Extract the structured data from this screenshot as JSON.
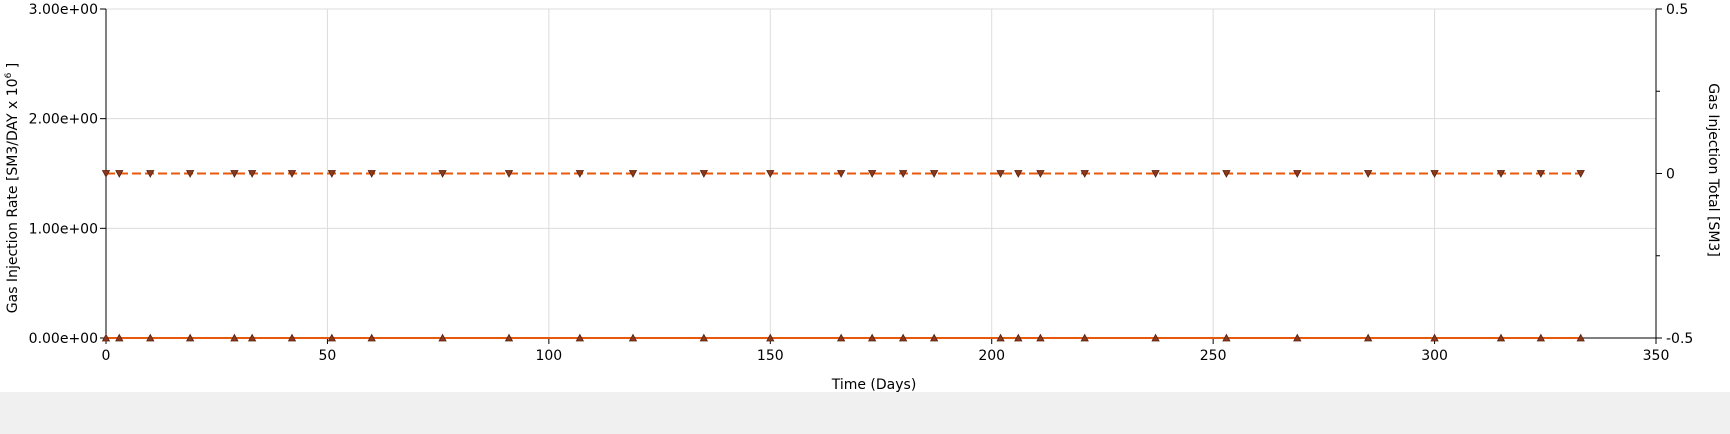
{
  "chart_data": {
    "type": "line",
    "title": "",
    "xlabel": "Time (Days)",
    "ylabel_left": "Gas Injection Rate [SM3/DAY x 10",
    "ylabel_left_sup": "6",
    "ylabel_left_close": " ]",
    "ylabel_right": "Gas Injection Total [SM3]",
    "xlim": [
      0,
      350
    ],
    "ylim_left": [
      0,
      3
    ],
    "ylim_right": [
      -0.5,
      0.5
    ],
    "x_ticks": [
      0,
      50,
      100,
      150,
      200,
      250,
      300,
      350
    ],
    "x_tick_labels": [
      "0",
      "50",
      "100",
      "150",
      "200",
      "250",
      "300",
      "350"
    ],
    "y_left_ticks": [
      0,
      1,
      2,
      3
    ],
    "y_left_tick_labels": [
      "0.00e+00",
      "1.00e+00",
      "2.00e+00",
      "3.00e+00"
    ],
    "y_right_ticks": [
      -0.5,
      0,
      0.5
    ],
    "y_right_tick_labels": [
      "-0.5",
      "0",
      "0.5"
    ],
    "y_right_minor_ticks": [
      -0.25,
      0.25
    ],
    "grid": true,
    "x": [
      0,
      3,
      10,
      19,
      29,
      33,
      42,
      51,
      60,
      76,
      91,
      107,
      119,
      135,
      150,
      166,
      173,
      180,
      187,
      202,
      206,
      211,
      221,
      237,
      253,
      269,
      285,
      300,
      315,
      324,
      333
    ],
    "series": [
      {
        "axis": "left",
        "color": "#e8590c",
        "line_style": "dashed",
        "marker": "triangle-down",
        "values": [
          1.5,
          1.5,
          1.5,
          1.5,
          1.5,
          1.5,
          1.5,
          1.5,
          1.5,
          1.5,
          1.5,
          1.5,
          1.5,
          1.5,
          1.5,
          1.5,
          1.5,
          1.5,
          1.5,
          1.5,
          1.5,
          1.5,
          1.5,
          1.5,
          1.5,
          1.5,
          1.5,
          1.5,
          1.5,
          1.5,
          1.5
        ]
      },
      {
        "axis": "right",
        "color": "#e8590c",
        "line_style": "solid",
        "marker": "triangle-up",
        "values": [
          -0.5,
          -0.5,
          -0.5,
          -0.5,
          -0.5,
          -0.5,
          -0.5,
          -0.5,
          -0.5,
          -0.5,
          -0.5,
          -0.5,
          -0.5,
          -0.5,
          -0.5,
          -0.5,
          -0.5,
          -0.5,
          -0.5,
          -0.5,
          -0.5,
          -0.5,
          -0.5,
          -0.5,
          -0.5,
          -0.5,
          -0.5,
          -0.5,
          -0.5,
          -0.5,
          -0.5
        ]
      }
    ]
  }
}
